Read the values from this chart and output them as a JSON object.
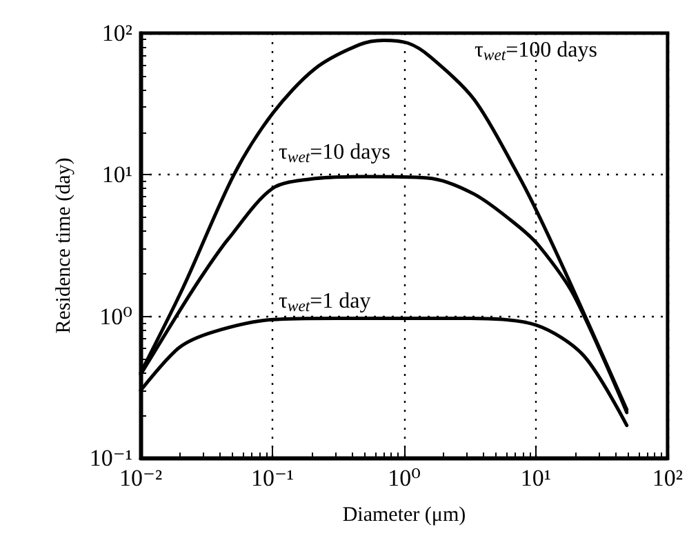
{
  "chart_data": {
    "type": "line",
    "xlabel": "Diameter (μm)",
    "ylabel": "Residence time (day)",
    "log": "xy",
    "grid": true,
    "marker": "none",
    "line_style": "solid",
    "xlim": [
      0.01,
      100
    ],
    "ylim": [
      0.1,
      100
    ],
    "xticks": [
      {
        "value": 0.01,
        "label": "10⁻²"
      },
      {
        "value": 0.1,
        "label": "10⁻¹"
      },
      {
        "value": 1,
        "label": "10⁰"
      },
      {
        "value": 10,
        "label": "10¹"
      },
      {
        "value": 100,
        "label": "10²"
      }
    ],
    "yticks": [
      {
        "value": 0.1,
        "label": "10⁻¹"
      },
      {
        "value": 1,
        "label": "10⁰"
      },
      {
        "value": 10,
        "label": "10¹"
      },
      {
        "value": 100,
        "label": "10²"
      }
    ],
    "series": [
      {
        "color": "#000000",
        "x": [
          0.01,
          0.0195,
          0.036,
          0.1,
          0.3,
          1,
          3.2,
          10,
          23,
          49
        ],
        "values": [
          0.3,
          0.6,
          0.78,
          0.95,
          0.97,
          0.97,
          0.97,
          0.87,
          0.53,
          0.17
        ]
      },
      {
        "color": "#000000",
        "x": [
          0.01,
          0.021,
          0.031,
          0.046,
          0.1,
          0.21,
          0.5,
          1.5,
          3.4,
          7.2,
          10.7,
          19.5,
          49
        ],
        "values": [
          0.39,
          1.2,
          2.1,
          3.5,
          8.0,
          9.4,
          9.7,
          9.5,
          7.3,
          4.4,
          3.1,
          1.4,
          0.21
        ]
      },
      {
        "color": "#000000",
        "x": [
          0.01,
          0.021,
          0.051,
          0.1,
          0.21,
          0.46,
          0.7,
          1.07,
          1.55,
          3.4,
          7.2,
          10.7,
          19.5,
          49
        ],
        "values": [
          0.4,
          1.6,
          10,
          27,
          56,
          83,
          89,
          85,
          69,
          34,
          10.3,
          5.0,
          1.5,
          0.22
        ]
      }
    ],
    "annotations": [
      "τ$_{wet}$=100 days",
      "τ$_{wet}$=10 days",
      "τ$_{wet}$=1 day"
    ]
  }
}
